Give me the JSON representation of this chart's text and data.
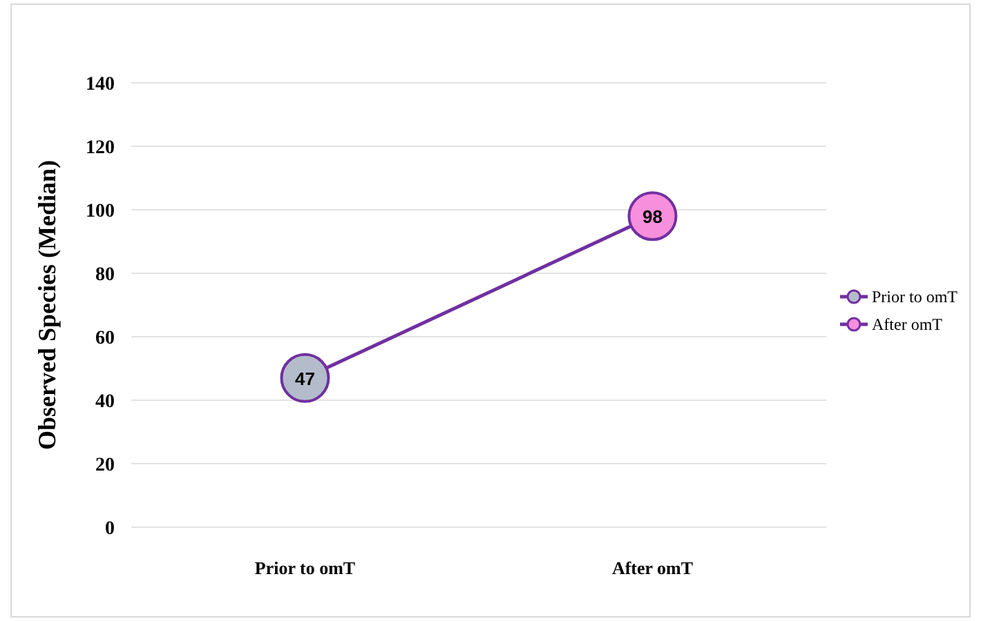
{
  "chart_data": {
    "type": "line",
    "ylabel": "Observed Species (Median)",
    "categories": [
      "Prior to omT",
      "After omT"
    ],
    "series": [
      {
        "color": "#7030a0",
        "values": [
          47,
          98
        ],
        "marker": "none"
      },
      {
        "type": "scatter",
        "name": "Prior to omT",
        "color": "#b4bccb",
        "values": [
          47,
          null
        ],
        "value_labels": [
          "47",
          null
        ],
        "marker": "circle"
      },
      {
        "type": "scatter",
        "name": "After omT",
        "color": "#f78fdc",
        "values": [
          null,
          98
        ],
        "value_labels": [
          null,
          "98"
        ],
        "marker": "circle"
      }
    ],
    "ylim": [
      0,
      140
    ],
    "yticks": [
      0,
      20,
      40,
      60,
      80,
      100,
      120,
      140
    ],
    "grid": "y",
    "legend": "right"
  }
}
